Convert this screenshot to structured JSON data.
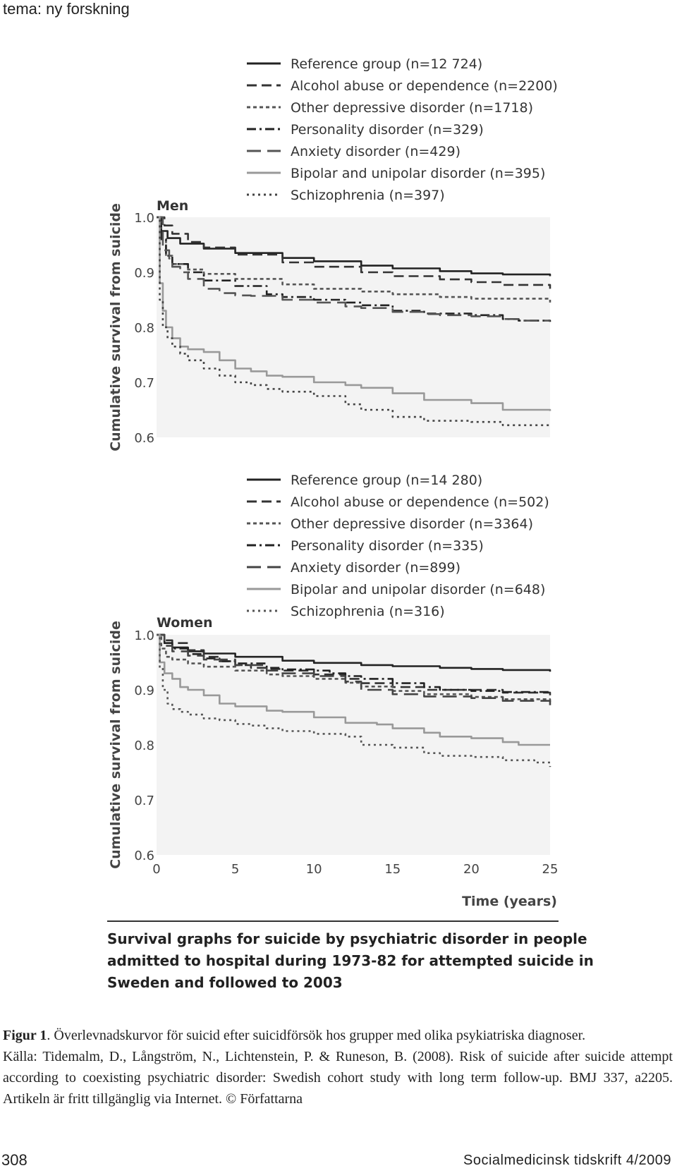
{
  "header": {
    "section": "tema: ny forskning"
  },
  "chart_data": [
    {
      "type": "line",
      "panel": "Men",
      "title": "Men",
      "xlabel": "Time (years)",
      "ylabel": "Cumulative survival from suicide",
      "xlim": [
        0,
        25
      ],
      "ylim": [
        0.6,
        1.0
      ],
      "yticks": [
        "1.0",
        "0.9",
        "0.8",
        "0.7",
        "0.6"
      ],
      "xticks": [
        "0",
        "5",
        "10",
        "15",
        "20",
        "25"
      ],
      "grid": false,
      "legend_position": "top",
      "series": [
        {
          "name": "Reference group (n=12 724)",
          "style": "solid",
          "color": "#222222",
          "x": [
            0,
            0.3,
            0.7,
            1.5,
            3,
            5,
            8,
            10,
            13,
            15,
            18,
            20,
            22,
            25
          ],
          "y": [
            1.0,
            0.975,
            0.962,
            0.952,
            0.943,
            0.935,
            0.926,
            0.92,
            0.912,
            0.907,
            0.902,
            0.898,
            0.896,
            0.893
          ]
        },
        {
          "name": "Alcohol abuse or dependence (n=2200)",
          "style": "dash",
          "color": "#333333",
          "x": [
            0,
            0.5,
            1,
            2,
            3,
            5,
            8,
            10,
            13,
            15,
            18,
            20,
            22,
            25
          ],
          "y": [
            1.0,
            0.985,
            0.97,
            0.955,
            0.945,
            0.932,
            0.918,
            0.91,
            0.9,
            0.893,
            0.887,
            0.882,
            0.877,
            0.87
          ]
        },
        {
          "name": "Other depressive disorder (n=1718)",
          "style": "shortdash",
          "color": "#555555",
          "x": [
            0,
            0.3,
            0.6,
            1,
            2,
            3,
            5,
            8,
            10,
            13,
            15,
            18,
            20,
            25
          ],
          "y": [
            1.0,
            0.96,
            0.93,
            0.915,
            0.905,
            0.897,
            0.888,
            0.878,
            0.87,
            0.865,
            0.86,
            0.855,
            0.852,
            0.845
          ]
        },
        {
          "name": "Personality disorder (n=329)",
          "style": "dashdot",
          "color": "#222222",
          "x": [
            0,
            0.3,
            0.6,
            1,
            2,
            3,
            5,
            7,
            8,
            10,
            12,
            13,
            15,
            17,
            20,
            22,
            23,
            25
          ],
          "y": [
            1.0,
            0.96,
            0.93,
            0.915,
            0.9,
            0.885,
            0.875,
            0.86,
            0.855,
            0.85,
            0.845,
            0.84,
            0.83,
            0.825,
            0.822,
            0.815,
            0.812,
            0.81
          ]
        },
        {
          "name": "Anxiety disorder (n=429)",
          "style": "longdash",
          "color": "#555555",
          "x": [
            0,
            0.4,
            0.8,
            1,
            1.5,
            2,
            3,
            4,
            5,
            6,
            7,
            8,
            10,
            12,
            13,
            15,
            17,
            18,
            20,
            22,
            23,
            25
          ],
          "y": [
            1.0,
            0.94,
            0.925,
            0.91,
            0.9,
            0.888,
            0.87,
            0.862,
            0.858,
            0.857,
            0.857,
            0.85,
            0.845,
            0.838,
            0.835,
            0.828,
            0.824,
            0.822,
            0.82,
            0.815,
            0.812,
            0.812
          ]
        },
        {
          "name": "Bipolar and unipolar disorder (n=395)",
          "style": "solid",
          "color": "#999999",
          "x": [
            0,
            0.2,
            0.4,
            0.6,
            1,
            1.5,
            2,
            3,
            4,
            5,
            6,
            7,
            8,
            10,
            12,
            13,
            15,
            17,
            20,
            22,
            25
          ],
          "y": [
            1.0,
            0.88,
            0.83,
            0.8,
            0.78,
            0.765,
            0.76,
            0.755,
            0.74,
            0.725,
            0.72,
            0.712,
            0.71,
            0.7,
            0.695,
            0.69,
            0.68,
            0.668,
            0.662,
            0.65,
            0.648
          ]
        },
        {
          "name": "Schizophrenia (n=397)",
          "style": "dot",
          "color": "#444444",
          "x": [
            0,
            0.2,
            0.4,
            0.7,
            1,
            1.5,
            2,
            3,
            4,
            5,
            6,
            7,
            8,
            10,
            12,
            13,
            15,
            17,
            20,
            22,
            25
          ],
          "y": [
            1.0,
            0.85,
            0.8,
            0.78,
            0.765,
            0.752,
            0.74,
            0.725,
            0.712,
            0.7,
            0.695,
            0.688,
            0.683,
            0.675,
            0.66,
            0.65,
            0.637,
            0.63,
            0.628,
            0.622,
            0.62
          ]
        }
      ]
    },
    {
      "type": "line",
      "panel": "Women",
      "title": "Women",
      "xlabel": "Time (years)",
      "ylabel": "Cumulative survival from suicide",
      "xlim": [
        0,
        25
      ],
      "ylim": [
        0.6,
        1.0
      ],
      "yticks": [
        "1.0",
        "0.9",
        "0.8",
        "0.7",
        "0.6"
      ],
      "xticks": [
        "0",
        "5",
        "10",
        "15",
        "20",
        "25"
      ],
      "grid": false,
      "legend_position": "top",
      "series": [
        {
          "name": "Reference group (n=14 280)",
          "style": "solid",
          "color": "#222222",
          "x": [
            0,
            0.5,
            1,
            2,
            3,
            5,
            8,
            10,
            13,
            15,
            18,
            20,
            22,
            25
          ],
          "y": [
            1.0,
            0.985,
            0.977,
            0.97,
            0.966,
            0.96,
            0.953,
            0.949,
            0.945,
            0.943,
            0.94,
            0.938,
            0.936,
            0.933
          ]
        },
        {
          "name": "Alcohol abuse or dependence (n=502)",
          "style": "dash",
          "color": "#333333",
          "x": [
            0,
            0.5,
            1,
            2,
            3,
            4,
            5,
            6,
            7,
            8,
            10,
            12,
            13,
            15,
            17,
            20,
            22,
            25
          ],
          "y": [
            1.0,
            0.99,
            0.985,
            0.972,
            0.96,
            0.952,
            0.945,
            0.94,
            0.938,
            0.935,
            0.928,
            0.92,
            0.912,
            0.905,
            0.9,
            0.9,
            0.895,
            0.89
          ]
        },
        {
          "name": "Other depressive disorder (n=3364)",
          "style": "shortdash",
          "color": "#555555",
          "x": [
            0,
            0.3,
            0.6,
            1,
            2,
            3,
            5,
            7,
            8,
            10,
            12,
            13,
            15,
            17,
            20,
            22,
            25
          ],
          "y": [
            1.0,
            0.975,
            0.96,
            0.955,
            0.948,
            0.942,
            0.935,
            0.928,
            0.925,
            0.92,
            0.913,
            0.906,
            0.898,
            0.892,
            0.887,
            0.883,
            0.878
          ]
        },
        {
          "name": "Personality disorder (n=335)",
          "style": "dashdot",
          "color": "#222222",
          "x": [
            0,
            0.5,
            1,
            2,
            3,
            4,
            5,
            7,
            8,
            10,
            11,
            12,
            13,
            15,
            17,
            18,
            20,
            22,
            25
          ],
          "y": [
            1.0,
            0.985,
            0.975,
            0.965,
            0.957,
            0.952,
            0.948,
            0.94,
            0.937,
            0.935,
            0.93,
            0.925,
            0.92,
            0.912,
            0.905,
            0.9,
            0.898,
            0.896,
            0.893
          ]
        },
        {
          "name": "Anxiety disorder (n=899)",
          "style": "longdash",
          "color": "#444444",
          "x": [
            0,
            0.5,
            1,
            2,
            3,
            5,
            7,
            8,
            10,
            12,
            13,
            15,
            17,
            20,
            22,
            25
          ],
          "y": [
            1.0,
            0.98,
            0.97,
            0.962,
            0.955,
            0.945,
            0.935,
            0.93,
            0.925,
            0.915,
            0.9,
            0.892,
            0.888,
            0.885,
            0.88,
            0.872
          ]
        },
        {
          "name": "Bipolar and unipolar disorder (n=648)",
          "style": "solid",
          "color": "#999999",
          "x": [
            0,
            0.2,
            0.5,
            1,
            1.5,
            2,
            3,
            4,
            5,
            6,
            7,
            8,
            10,
            12,
            14,
            15,
            17,
            18,
            20,
            22,
            23,
            25
          ],
          "y": [
            1.0,
            0.95,
            0.93,
            0.92,
            0.905,
            0.9,
            0.89,
            0.875,
            0.87,
            0.87,
            0.862,
            0.86,
            0.85,
            0.84,
            0.837,
            0.83,
            0.822,
            0.815,
            0.812,
            0.805,
            0.8,
            0.8
          ]
        },
        {
          "name": "Schizophrenia (n=316)",
          "style": "dot",
          "color": "#555555",
          "x": [
            0,
            0.2,
            0.4,
            0.7,
            1,
            1.5,
            2,
            3,
            4,
            5,
            6,
            7,
            8,
            10,
            12,
            13,
            15,
            17,
            18,
            20,
            22,
            24,
            25
          ],
          "y": [
            1.0,
            0.94,
            0.9,
            0.875,
            0.865,
            0.86,
            0.855,
            0.848,
            0.845,
            0.838,
            0.835,
            0.83,
            0.825,
            0.82,
            0.815,
            0.8,
            0.795,
            0.785,
            0.78,
            0.778,
            0.772,
            0.768,
            0.76
          ]
        }
      ]
    }
  ],
  "figure_caption": {
    "title": "Survival graphs for suicide by psychiatric disorder in people admitted to hospital during 1973-82 for attempted suicide in Sweden and followed to 2003",
    "title_lines": [
      "Survival graphs for suicide by psychiatric disorder in people",
      "admitted to hospital during 1973-82 for attempted suicide in",
      "Sweden and followed to 2003"
    ]
  },
  "caption": {
    "label": "Figur 1",
    "text": ". Överlevnadskurvor för suicid efter suicidförsök hos grupper med olika psykiatriska diagnoser.",
    "source": "Källa: Tidemalm, D., Långström, N., Lichtenstein, P. & Runeson, B. (2008). Risk of suicide after suicide attempt according to coexisting psychiatric disorder: Swedish cohort study with long term follow-up. BMJ 337, a2205. Artikeln är fritt tillgänglig via Internet. © Författarna"
  },
  "footer": {
    "page_number": "308",
    "journal": "Socialmedicinsk tidskrift 4/2009"
  }
}
